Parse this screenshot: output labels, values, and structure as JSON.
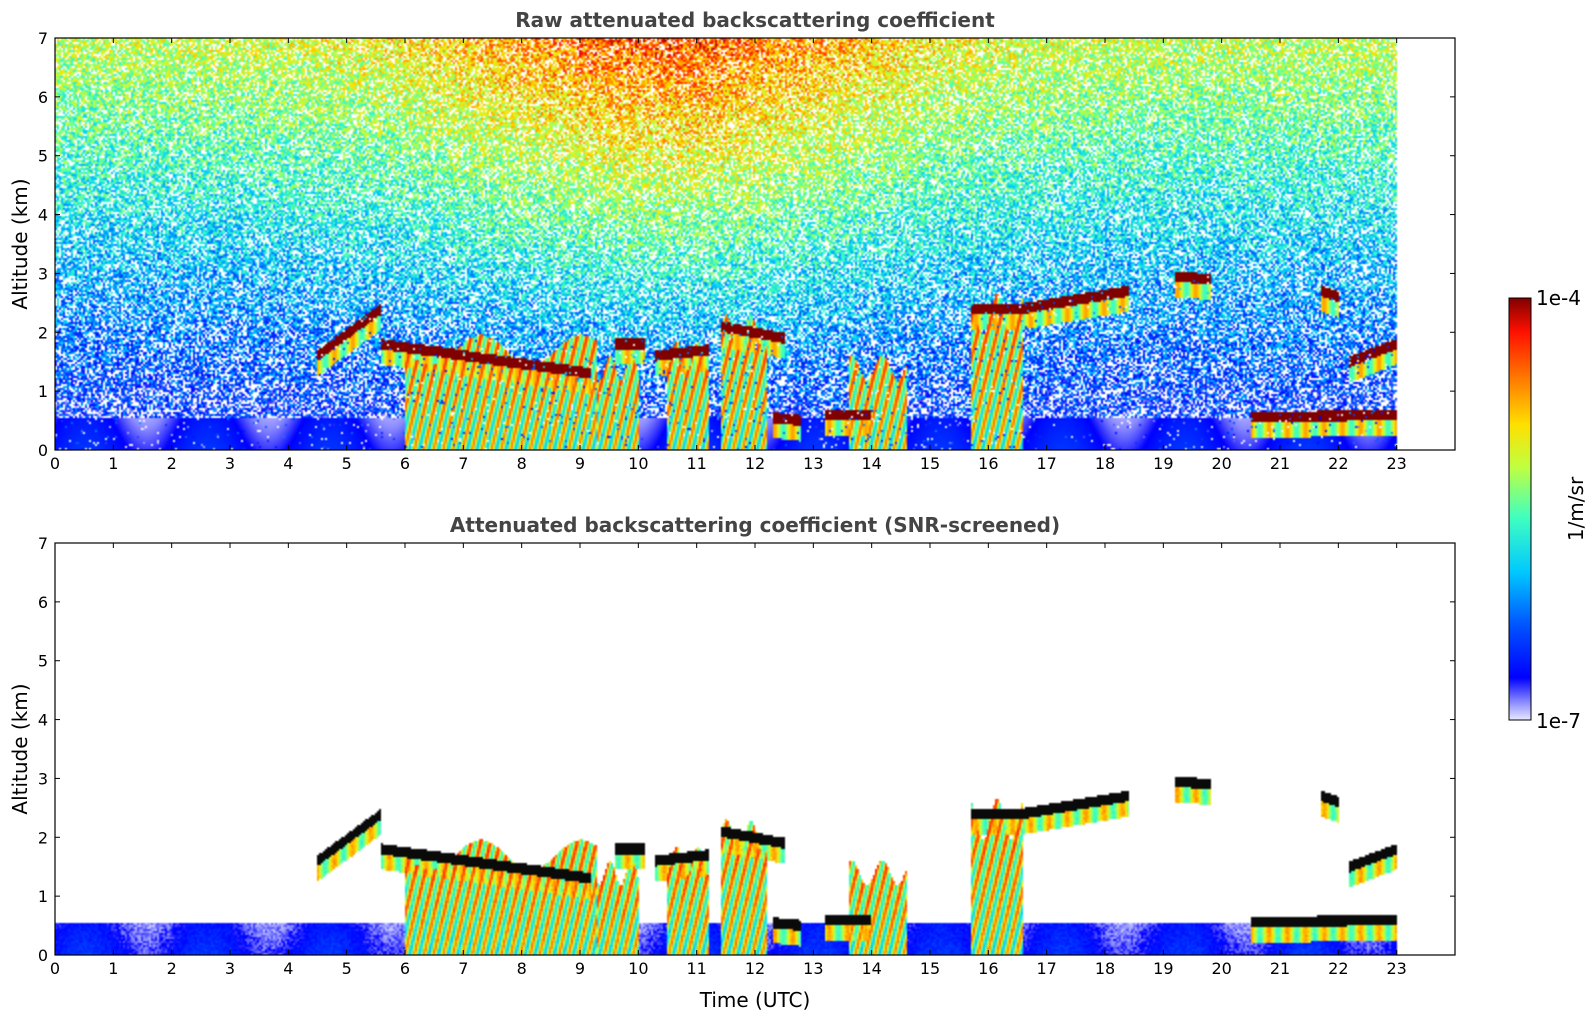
{
  "chart_data": [
    {
      "type": "heatmap",
      "title": "Raw attenuated backscattering coefficient",
      "ylabel": "Altitude (km)",
      "xlabel": "",
      "xlim": [
        0,
        24
      ],
      "ylim": [
        0,
        7
      ],
      "xticks": [
        "0",
        "1",
        "2",
        "3",
        "4",
        "5",
        "6",
        "7",
        "8",
        "9",
        "10",
        "11",
        "12",
        "13",
        "14",
        "15",
        "16",
        "17",
        "18",
        "19",
        "20",
        "21",
        "22",
        "23"
      ],
      "yticks": [
        "0",
        "1",
        "2",
        "3",
        "4",
        "5",
        "6",
        "7"
      ],
      "data_end_time": 23,
      "grid": false,
      "noise": true
    },
    {
      "type": "heatmap",
      "title": "Attenuated backscattering coefficient (SNR-screened)",
      "ylabel": "Altitude (km)",
      "xlabel": "Time (UTC)",
      "xlim": [
        0,
        24
      ],
      "ylim": [
        0,
        7
      ],
      "xticks": [
        "0",
        "1",
        "2",
        "3",
        "4",
        "5",
        "6",
        "7",
        "8",
        "9",
        "10",
        "11",
        "12",
        "13",
        "14",
        "15",
        "16",
        "17",
        "18",
        "19",
        "20",
        "21",
        "22",
        "23"
      ],
      "yticks": [
        "0",
        "1",
        "2",
        "3",
        "4",
        "5",
        "6",
        "7"
      ],
      "data_end_time": 23,
      "grid": false,
      "noise": false
    }
  ],
  "colorbar": {
    "label": "1/m/sr",
    "max_label": "1e-4",
    "min_label": "1e-7",
    "scale": "log",
    "range": [
      1e-07,
      0.0001
    ],
    "colormap": "jet"
  },
  "features": {
    "cloud_layers": [
      {
        "t0": 4.5,
        "t1": 5.6,
        "h0": 1.6,
        "h1": 2.4
      },
      {
        "t0": 5.6,
        "t1": 9.2,
        "h0": 1.8,
        "h1": 1.3
      },
      {
        "t0": 9.6,
        "t1": 10.1,
        "h0": 1.8,
        "h1": 1.8
      },
      {
        "t0": 10.3,
        "t1": 11.2,
        "h0": 1.6,
        "h1": 1.7
      },
      {
        "t0": 11.4,
        "t1": 12.5,
        "h0": 2.1,
        "h1": 1.9
      },
      {
        "t0": 15.7,
        "t1": 16.6,
        "h0": 2.4,
        "h1": 2.4
      },
      {
        "t0": 16.6,
        "t1": 18.4,
        "h0": 2.4,
        "h1": 2.7
      },
      {
        "t0": 19.2,
        "t1": 19.8,
        "h0": 2.95,
        "h1": 2.9
      },
      {
        "t0": 21.7,
        "t1": 22.0,
        "h0": 2.7,
        "h1": 2.6
      },
      {
        "t0": 22.2,
        "t1": 23.0,
        "h0": 1.5,
        "h1": 1.8
      },
      {
        "t0": 20.5,
        "t1": 23.0,
        "h0": 0.55,
        "h1": 0.6
      },
      {
        "t0": 12.3,
        "t1": 12.8,
        "h0": 0.55,
        "h1": 0.5
      },
      {
        "t0": 13.2,
        "t1": 14.0,
        "h0": 0.6,
        "h1": 0.6
      }
    ],
    "precipitation_shafts": [
      {
        "t0": 6.0,
        "t1": 9.3,
        "top": 1.7
      },
      {
        "t0": 9.3,
        "t1": 10.0,
        "top": 1.4
      },
      {
        "t0": 10.5,
        "t1": 11.2,
        "top": 1.6
      },
      {
        "t0": 11.4,
        "t1": 12.2,
        "top": 2.0
      },
      {
        "t0": 13.6,
        "t1": 14.6,
        "top": 1.4
      },
      {
        "t0": 15.7,
        "t1": 16.6,
        "top": 2.3
      }
    ],
    "boundary_layer": {
      "t0": 0.0,
      "t1": 23.0,
      "h0": 0.0,
      "h1": 0.55
    }
  }
}
